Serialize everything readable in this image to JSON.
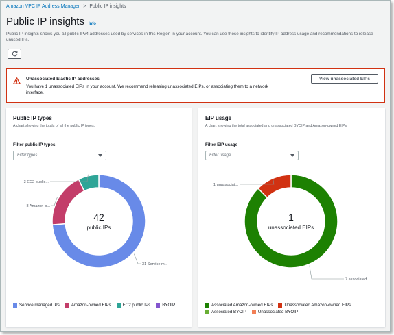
{
  "breadcrumb": {
    "parent": "Amazon VPC IP Address Manager",
    "separator": ">",
    "current": "Public IP insights"
  },
  "page": {
    "title": "Public IP insights",
    "info": "Info",
    "description": "Public IP insights shows you all public IPv4 addresses used by services in this Region in your account. You can use these insights to identify IP address usage and recommendations to release unused IPs."
  },
  "alert": {
    "title": "Unassociated Elastic IP addresses",
    "text": "You have 1 unassociated EIPs in your account. We recommend releasing unassociated EIPs, or associating them to a network interface.",
    "button": "View unassociated EIPs"
  },
  "colors": {
    "service_managed": "#688ae8",
    "amazon_owned": "#c33d69",
    "ec2_public": "#2ea597",
    "byoip": "#8456ce",
    "assoc_amazon": "#1d8102",
    "unassoc_amazon": "#d13212",
    "assoc_byoip": "#69ae34",
    "unassoc_byoip": "#f27f56"
  },
  "left_panel": {
    "title": "Public IP types",
    "subtitle": "A chart showing the totals of all the public IP types.",
    "filter_label": "Filter public IP types",
    "filter_placeholder": "Filter types",
    "center_value": "42",
    "center_label": "public IPs",
    "legend": [
      "Service managed IPs",
      "Amazon-owned EIPs",
      "EC2 public IPs",
      "BYOIP"
    ]
  },
  "right_panel": {
    "title": "EIP usage",
    "subtitle": "A chart showing the total associated and unassociated BYOIP and Amazon-owned EIPs.",
    "filter_label": "Filter EIP usage",
    "filter_placeholder": "Filter usage",
    "center_value": "1",
    "center_label": "unassociated EIPs",
    "legend": [
      "Associated Amazon-owned EIPs",
      "Unassociated Amazon-owned EIPs",
      "Associated BYOIP",
      "Unassociated BYOIP"
    ]
  },
  "chart_data": [
    {
      "type": "pie",
      "title": "Public IP types",
      "categories": [
        "Service managed IPs",
        "Amazon-owned EIPs",
        "EC2 public IPs",
        "BYOIP"
      ],
      "values": [
        31,
        8,
        3,
        0
      ],
      "slice_labels": [
        "31 Service m...",
        "8 Amazon-o...",
        "3 EC2 public...",
        ""
      ],
      "total": 42
    },
    {
      "type": "pie",
      "title": "EIP usage",
      "categories": [
        "Associated Amazon-owned EIPs",
        "Unassociated Amazon-owned EIPs",
        "Associated BYOIP",
        "Unassociated BYOIP"
      ],
      "values": [
        7,
        1,
        0,
        0
      ],
      "slice_labels": [
        "7 associated ...",
        "1 unassociat...",
        "",
        ""
      ],
      "total": 1
    }
  ]
}
